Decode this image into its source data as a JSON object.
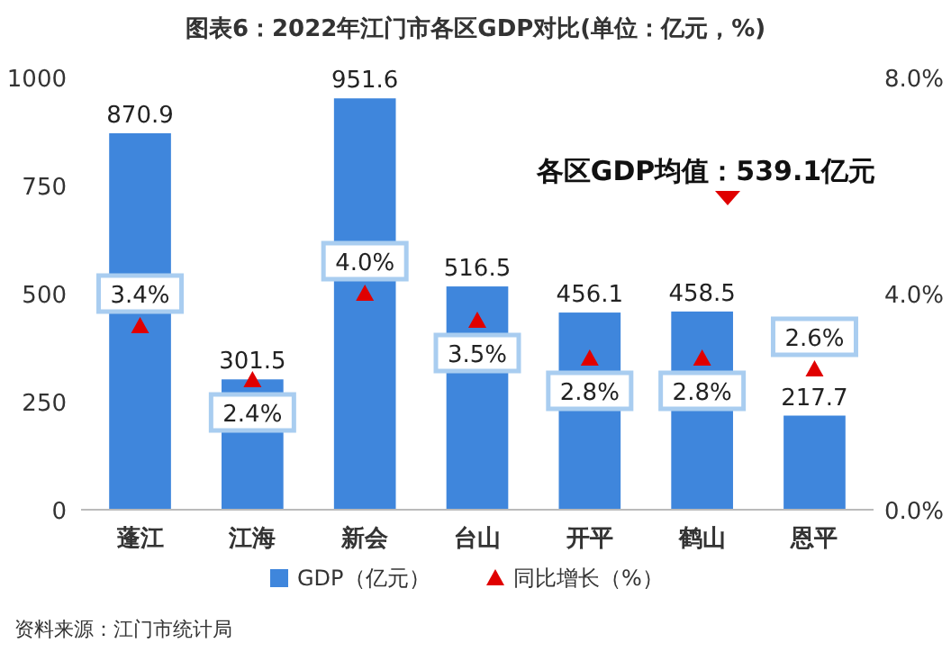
{
  "chart_data": {
    "type": "bar",
    "title": "图表6：2022年江门市各区GDP对比(单位：亿元，%)",
    "categories": [
      "蓬江",
      "江海",
      "新会",
      "台山",
      "开平",
      "鹤山",
      "恩平"
    ],
    "series": [
      {
        "name": "GDP（亿元）",
        "color": "#3f86dc",
        "values": [
          870.9,
          301.5,
          951.6,
          516.5,
          456.1,
          458.5,
          217.7
        ]
      },
      {
        "name": "同比增长（%）",
        "type": "scatter",
        "axis": "y2",
        "color": "#e00000",
        "marker": "triangle",
        "values": [
          3.4,
          2.4,
          4.0,
          3.5,
          2.8,
          2.8,
          2.6
        ],
        "value_labels": [
          "3.4%",
          "2.4%",
          "4.0%",
          "3.5%",
          "2.8%",
          "2.8%",
          "2.6%"
        ]
      }
    ],
    "ylim": [
      0,
      1000
    ],
    "yticks": [
      0,
      250,
      500,
      750,
      1000
    ],
    "y2lim": [
      0,
      8
    ],
    "y2ticks": [
      {
        "value": 0,
        "label": "0.0%"
      },
      {
        "value": 4,
        "label": "4.0%"
      },
      {
        "value": 8,
        "label": "8.0%"
      }
    ],
    "data_labels": true,
    "grid": false,
    "legend": "bottom",
    "annotations": [
      "各区GDP均值：539.1亿元",
      "资料来源：江门市统计局"
    ]
  }
}
